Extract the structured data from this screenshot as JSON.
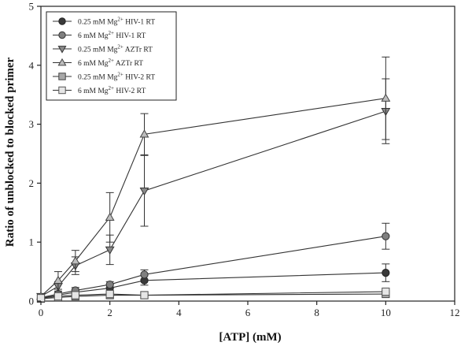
{
  "chart_data": {
    "type": "scatter",
    "title": "",
    "xlabel": "[ATP] (mM)",
    "ylabel": "Ratio of unblocked to blocked primer",
    "xlim": [
      0,
      12
    ],
    "ylim": [
      0,
      5
    ],
    "xticks": [
      "0",
      "2",
      "4",
      "6",
      "8",
      "10",
      "12"
    ],
    "yticks": [
      "0",
      "1",
      "2",
      "3",
      "4",
      "5"
    ],
    "grid": false,
    "legend_position": "top-left",
    "series": [
      {
        "name": "0.25 mM Mg2+ HIV-1 RT",
        "legend": {
          "pre": "0.25 mM Mg",
          "sup": "2+",
          "post": " HIV-1 RT"
        },
        "marker": "circle",
        "fill": "#3a3a3a",
        "stroke": "#222222",
        "x": [
          0,
          0.5,
          1,
          2,
          3,
          10
        ],
        "y": [
          0.05,
          0.1,
          0.15,
          0.22,
          0.35,
          0.48
        ],
        "err": [
          0.02,
          0.03,
          0.05,
          0.06,
          0.08,
          0.15
        ]
      },
      {
        "name": "6 mM Mg2+ HIV-1 RT",
        "legend": {
          "pre": "6 mM Mg",
          "sup": "2+",
          "post": " HIV-1 RT"
        },
        "marker": "circle",
        "fill": "#7f7f7f",
        "stroke": "#333333",
        "x": [
          0,
          0.5,
          1,
          2,
          3,
          10
        ],
        "y": [
          0.06,
          0.12,
          0.18,
          0.28,
          0.45,
          1.1
        ],
        "err": [
          0.02,
          0.03,
          0.05,
          0.05,
          0.08,
          0.22
        ]
      },
      {
        "name": "0.25 mM Mg2+ AZTr RT",
        "legend": {
          "pre": "0.25 mM Mg",
          "sup": "2+",
          "post": " AZTr RT"
        },
        "marker": "triangle-down",
        "fill": "#8a8a8a",
        "stroke": "#333333",
        "x": [
          0,
          0.5,
          1,
          2,
          3,
          10
        ],
        "y": [
          0.08,
          0.25,
          0.6,
          0.87,
          1.87,
          3.22
        ],
        "err": [
          0.03,
          0.08,
          0.15,
          0.25,
          0.6,
          0.55
        ]
      },
      {
        "name": "6 mM Mg2+ AZTr RT",
        "legend": {
          "pre": "6 mM Mg",
          "sup": "2+",
          "post": " AZTr RT"
        },
        "marker": "triangle-up",
        "fill": "#bdbdbd",
        "stroke": "#444444",
        "x": [
          0,
          0.5,
          1,
          2,
          3,
          10
        ],
        "y": [
          0.08,
          0.35,
          0.68,
          1.42,
          2.83,
          3.44
        ],
        "err": [
          0.03,
          0.15,
          0.18,
          0.42,
          0.35,
          0.7
        ]
      },
      {
        "name": "0.25 mM Mg2+ HIV-2 RT",
        "legend": {
          "pre": "0.25 mM Mg",
          "sup": "2+",
          "post": " HIV-2 RT"
        },
        "marker": "square",
        "fill": "#a8a8a8",
        "stroke": "#444444",
        "x": [
          0,
          0.5,
          1,
          2,
          3,
          10
        ],
        "y": [
          0.04,
          0.06,
          0.08,
          0.1,
          0.1,
          0.12
        ],
        "err": [
          0,
          0,
          0,
          0,
          0,
          0
        ]
      },
      {
        "name": "6 mM Mg2+ HIV-2 RT",
        "legend": {
          "pre": "6 mM Mg",
          "sup": "2+",
          "post": " HIV-2 RT"
        },
        "marker": "square",
        "fill": "#e6e6e6",
        "stroke": "#555555",
        "x": [
          0,
          0.5,
          1,
          2,
          3,
          10
        ],
        "y": [
          0.05,
          0.08,
          0.1,
          0.12,
          0.1,
          0.16
        ],
        "err": [
          0,
          0,
          0,
          0,
          0,
          0
        ]
      }
    ]
  }
}
